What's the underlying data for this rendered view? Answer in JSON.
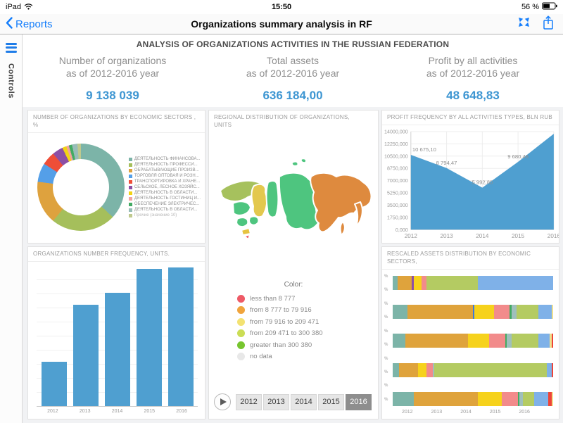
{
  "status_bar": {
    "carrier": "iPad",
    "time": "15:50",
    "battery_level": "56 %"
  },
  "nav_bar": {
    "back_label": "Reports",
    "title": "Organizations summary analysis in RF",
    "accent_color": "#157efb"
  },
  "sidebar": {
    "label": "Controls",
    "accent_color": "#1e7ce8"
  },
  "report_header": {
    "title": "ANALYSIS OF ORGANIZATIONS ACTIVITIES IN THE RUSSIAN FEDERATION",
    "value_color": "#3e96d2",
    "kpis": [
      {
        "label_line1": "Number of organizations",
        "label_line2": "as of 2012-2016 year",
        "value": "9 138 039"
      },
      {
        "label_line1": "Total assets",
        "label_line2": "as of 2012-2016 year",
        "value": "636 184,00"
      },
      {
        "label_line1": "Profit by all activities",
        "label_line2": "as of 2012-2016 year",
        "value": "48 648,83"
      }
    ]
  },
  "donut_panel": {
    "title": "NUMBER OF ORGANIZATIONS BY ECONOMIC SECTORS , %",
    "chart_data": {
      "type": "pie",
      "segments": [
        {
          "label": "ДЕЯТЕЛЬНОСТЬ ФИНАНСОВА...",
          "color": "#7cb4a8",
          "value": 37
        },
        {
          "label": "ДЕЯТЕЛЬНОСТЬ ПРОФЕССИ...",
          "color": "#a5bf5b",
          "value": 24
        },
        {
          "label": "ОБРАБАТЫВАЮЩИЕ ПРОИЗВ...",
          "color": "#dea23e",
          "value": 16
        },
        {
          "label": "ТОРГОВЛЯ ОПТОВАЯ И РОЗН...",
          "color": "#549fe8",
          "value": 7
        },
        {
          "label": "ТРАНСПОРТИРОВКА И ХРАНЕ...",
          "color": "#ef4e38",
          "value": 5
        },
        {
          "label": "СЕЛЬСКОЕ, ЛЕСНОЕ ХОЗЯЙС...",
          "color": "#8c4fa5",
          "value": 4
        },
        {
          "label": "ДЕЯТЕЛЬНОСТЬ В ОБЛАСТИ...",
          "color": "#f2d313",
          "value": 1.5
        },
        {
          "label": "ДЕЯТЕЛЬНОСТЬ ГОСТИНИЦ И...",
          "color": "#f0a3a0",
          "value": 1
        },
        {
          "label": "ОБЕСПЕЧЕНИЕ ЭЛЕКТРИЧЕС...",
          "color": "#43ab63",
          "value": 1.2
        },
        {
          "label": "ДЕЯТЕЛЬНОСТЬ В ОБЛАСТИ...",
          "color": "#98bdb8",
          "value": 2
        },
        {
          "label": "Прочие (значение 10)",
          "color": "#bfc98e",
          "value": 1.3
        }
      ]
    }
  },
  "bar_panel": {
    "title": "ORGANIZATIONS NUMBER FREQUENCY, UNITS.",
    "chart_data": {
      "type": "bar",
      "categories": [
        "2012",
        "2013",
        "2014",
        "2015",
        "2016"
      ],
      "values_relative": [
        32,
        73,
        82,
        99,
        100
      ],
      "bar_color": "#4f9fd0"
    }
  },
  "map_panel": {
    "title": "REGIONAL DISTRIBUTION OF ORGANIZATIONS, UNITS",
    "legend_title": "Color:",
    "legend": [
      {
        "color": "#ee5a66",
        "label": "less than 8 777"
      },
      {
        "color": "#f0a43c",
        "label": "from 8 777 to 79 916"
      },
      {
        "color": "#f3e272",
        "label": "from 79 916 to 209 471"
      },
      {
        "color": "#cbdd55",
        "label": "from 209 471 to 300 380"
      },
      {
        "color": "#77c52f",
        "label": "greater than 300 380"
      },
      {
        "color": "#e8e8e8",
        "label": "no data"
      }
    ],
    "region_colors": [
      "#a6c15d",
      "#4ec57f",
      "#4ec57f",
      "#4ec57f",
      "#e6c33f",
      "#ee4f5a",
      "#e3c84e",
      "#4ec57f",
      "#4ec57f",
      "#4ec57f",
      "#4ec57f",
      "#de8a3e",
      "#de8a3e",
      "#de8a3e"
    ],
    "player": {
      "years": [
        "2012",
        "2013",
        "2014",
        "2015",
        "2016"
      ],
      "selected_year": "2016"
    }
  },
  "area_panel": {
    "title": "PROFIT FREQUENCY BY ALL ACTIVITIES TYPES, BLN RUB",
    "chart_data": {
      "type": "area",
      "x": [
        "2012",
        "2013",
        "2014",
        "2015",
        "2016"
      ],
      "values": [
        10675.1,
        8794.47,
        5992.8,
        9680.48,
        13680
      ],
      "point_labels": [
        "10 675,10",
        "8 794,47",
        "5 992,80",
        "9 680,48",
        ""
      ],
      "ylim": [
        0,
        14000
      ],
      "y_ticks": [
        "0,000",
        "1750,000",
        "3500,000",
        "5250,000",
        "7000,000",
        "8750,000",
        "10500,000",
        "12250,000",
        "14000,000"
      ],
      "area_color": "#4f9fd0"
    }
  },
  "stacked_panel": {
    "title": "RESCALED ASSETS DISTRIBUTION BY ECONOMIC SECTORS,",
    "chart_data": {
      "type": "stacked-bar-horizontal",
      "x_ticks": [
        "2012",
        "2013",
        "2014",
        "2015",
        "2016"
      ],
      "y_tick_label": "%",
      "rows": [
        [
          {
            "c": "#7cb4a8",
            "v": 3
          },
          {
            "c": "#dfa33c",
            "v": 9
          },
          {
            "c": "#8c4fa5",
            "v": 1
          },
          {
            "c": "#f6d21c",
            "v": 5
          },
          {
            "c": "#f28b8b",
            "v": 3
          },
          {
            "c": "#b4cb62",
            "v": 32
          },
          {
            "c": "#7fb1e8",
            "v": 47
          }
        ],
        [
          {
            "c": "#7cb4a8",
            "v": 9
          },
          {
            "c": "#dfa33c",
            "v": 41
          },
          {
            "c": "#3c78e0",
            "v": 1
          },
          {
            "c": "#f6d21c",
            "v": 12
          },
          {
            "c": "#f28b8b",
            "v": 10
          },
          {
            "c": "#43ab63",
            "v": 1
          },
          {
            "c": "#9fbfbc",
            "v": 3
          },
          {
            "c": "#b4cb62",
            "v": 14
          },
          {
            "c": "#7fb1e8",
            "v": 8
          },
          {
            "c": "#efe08d",
            "v": 1
          }
        ],
        [
          {
            "c": "#7cb4a8",
            "v": 8
          },
          {
            "c": "#dfa33c",
            "v": 39
          },
          {
            "c": "#f6d21c",
            "v": 13
          },
          {
            "c": "#f28b8b",
            "v": 10
          },
          {
            "c": "#43ab63",
            "v": 1
          },
          {
            "c": "#9fbfbc",
            "v": 3
          },
          {
            "c": "#b4cb62",
            "v": 17
          },
          {
            "c": "#7fb1e8",
            "v": 7
          },
          {
            "c": "#efe08d",
            "v": 1
          },
          {
            "c": "#ee4438",
            "v": 1
          }
        ],
        [
          {
            "c": "#7cb4a8",
            "v": 4
          },
          {
            "c": "#dfa33c",
            "v": 12
          },
          {
            "c": "#f6d21c",
            "v": 5
          },
          {
            "c": "#f28b8b",
            "v": 4
          },
          {
            "c": "#9fbfbc",
            "v": 1
          },
          {
            "c": "#b4cb62",
            "v": 70
          },
          {
            "c": "#7fb1e8",
            "v": 3
          },
          {
            "c": "#ee4438",
            "v": 1
          }
        ],
        [
          {
            "c": "#7cb4a8",
            "v": 13
          },
          {
            "c": "#dfa33c",
            "v": 40
          },
          {
            "c": "#f6d21c",
            "v": 15
          },
          {
            "c": "#f28b8b",
            "v": 10
          },
          {
            "c": "#43ab63",
            "v": 1
          },
          {
            "c": "#9fbfbc",
            "v": 2
          },
          {
            "c": "#b4cb62",
            "v": 7
          },
          {
            "c": "#7fb1e8",
            "v": 9
          },
          {
            "c": "#ee4438",
            "v": 2
          },
          {
            "c": "#efe08d",
            "v": 1
          }
        ]
      ]
    }
  }
}
